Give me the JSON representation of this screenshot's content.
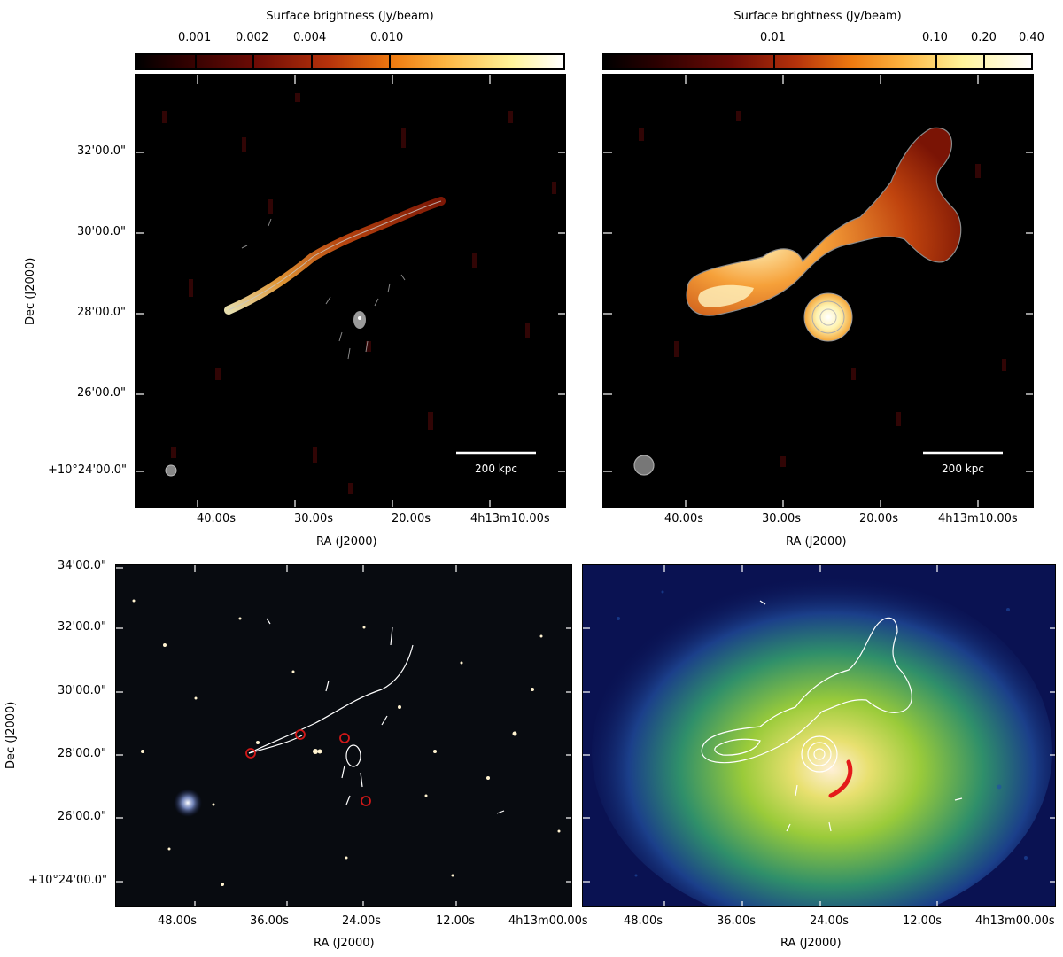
{
  "colorbars": {
    "left": {
      "title": "Surface brightness (Jy/beam)",
      "ticks": [
        "0.001",
        "0.002",
        "0.004",
        "0.010"
      ]
    },
    "right": {
      "title": "Surface brightness (Jy/beam)",
      "ticks": [
        "0.01",
        "0.10",
        "0.20",
        "0.40"
      ]
    }
  },
  "top_left": {
    "ra_ticks": [
      "40.00s",
      "30.00s",
      "20.00s",
      "4h13m10.00s"
    ],
    "dec_ticks": [
      "32'00.0\"",
      "30'00.0\"",
      "28'00.0\"",
      "26'00.0\"",
      "+10°24'00.0\""
    ],
    "xlabel": "RA (J2000)",
    "ylabel": "Dec (J2000)",
    "scalebar": "200 kpc"
  },
  "top_right": {
    "ra_ticks": [
      "40.00s",
      "30.00s",
      "20.00s",
      "4h13m10.00s"
    ],
    "xlabel": "RA (J2000)",
    "scalebar": "200 kpc"
  },
  "bottom_left": {
    "ra_ticks": [
      "48.00s",
      "36.00s",
      "24.00s",
      "12.00s",
      "4h13m00.00s"
    ],
    "dec_ticks": [
      "34'00.0\"",
      "32'00.0\"",
      "30'00.0\"",
      "28'00.0\"",
      "26'00.0\"",
      "+10°24'00.0\""
    ],
    "xlabel": "RA (J2000)",
    "ylabel": "Dec (J2000)"
  },
  "bottom_right": {
    "ra_ticks": [
      "48.00s",
      "36.00s",
      "24.00s",
      "12.00s",
      "4h13m00.00s"
    ],
    "xlabel": "RA (J2000)"
  }
}
